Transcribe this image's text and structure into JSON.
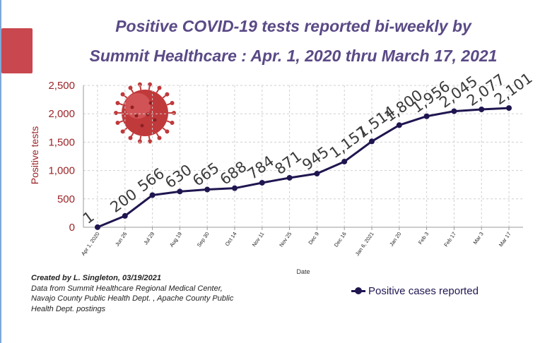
{
  "title_line1": "Positive  COVID-19 tests reported bi-weekly by",
  "title_line2": "Summit Healthcare : Apr. 1, 2020  thru March 17, 2021",
  "credit": {
    "author": "Created by L. Singleton, 03/19/2021",
    "source_line1": "Data from Summit Healthcare Regional Medical Center,",
    "source_line2": "Navajo County Public Health Dept. , Apache County Public",
    "source_line3": "Health Dept. postings"
  },
  "colors": {
    "title": "#5a4a86",
    "line": "#1f1650",
    "y_axis_text": "#9b2327",
    "accent_tab": "#c9474f",
    "virus": "#c0393b"
  },
  "icon": "coronavirus-icon",
  "chart_data": {
    "type": "line",
    "title": "Positive  COVID-19 tests reported bi-weekly by Summit Healthcare : Apr. 1, 2020  thru March 17, 2021",
    "xlabel": "Date",
    "ylabel": "Positive tests",
    "ylim": [
      0,
      2500
    ],
    "y_ticks": [
      "0",
      "500",
      "1,000",
      "1,500",
      "2,000",
      "2,500"
    ],
    "grid": true,
    "legend_position": "bottom-right",
    "categories": [
      "Apr 1, 2020",
      "Jun 26",
      "Jul 29",
      "Aug 19",
      "Sep 30",
      "Oct 14",
      "Nov 11",
      "Nov 25",
      "Dec 9",
      "Dec 16",
      "Jan 6, 2021",
      "Jan 20",
      "Feb 3",
      "Feb 17",
      "Mar 3",
      "Mar 17"
    ],
    "series": [
      {
        "name": "Positive cases reported",
        "values": [
          1,
          200,
          566,
          630,
          665,
          688,
          784,
          871,
          945,
          1157,
          1514,
          1800,
          1956,
          2045,
          2077,
          2101
        ],
        "data_labels": [
          "1",
          "200",
          "566",
          "630",
          "665",
          "688",
          "784",
          "871",
          "945",
          "1,157",
          "1,514",
          "1,800",
          "1,956",
          "2,045",
          "2,077",
          "2,101"
        ]
      }
    ]
  }
}
